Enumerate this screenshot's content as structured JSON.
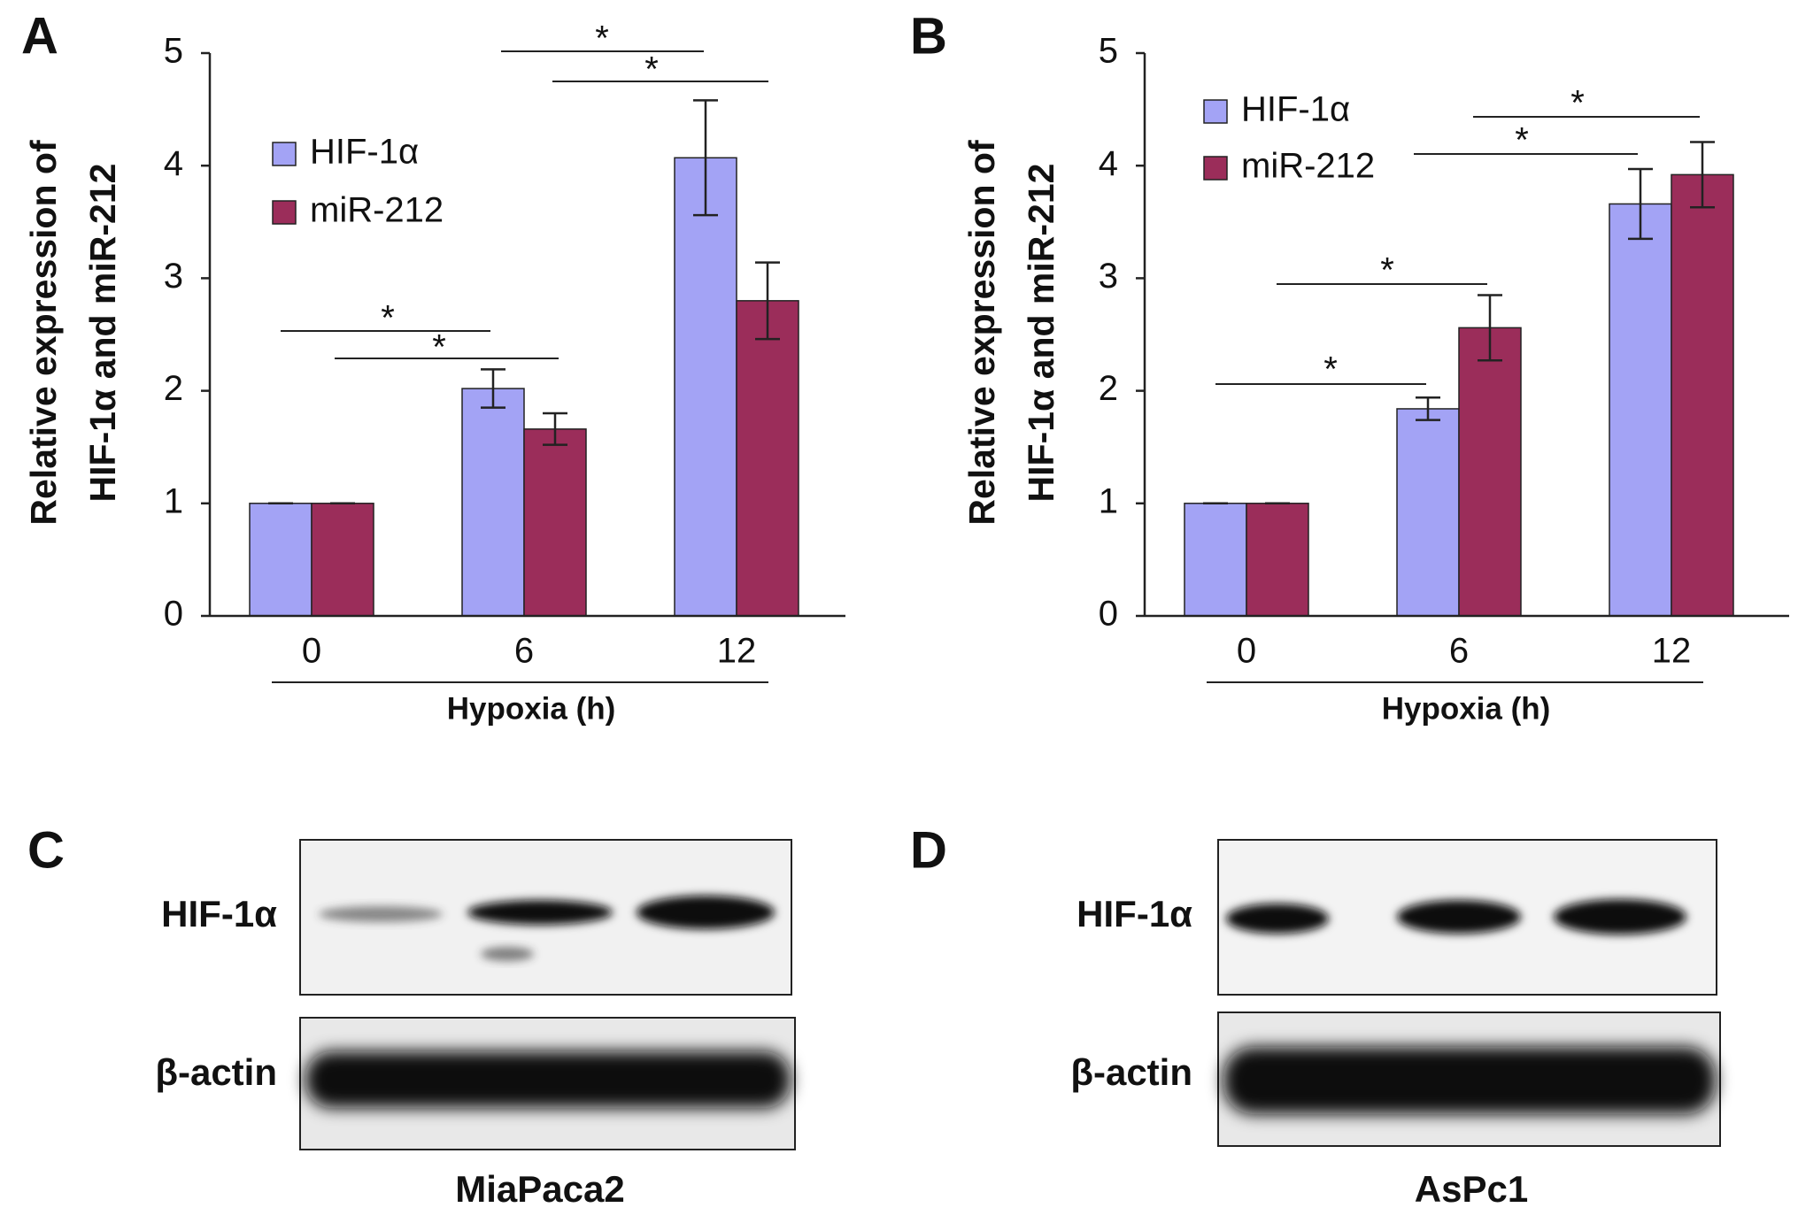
{
  "chart_data": [
    {
      "type": "bar",
      "panel": "A",
      "ylabel": [
        "Relative expression of",
        "HIF-1α and miR-212"
      ],
      "xlabel": "Hypoxia (h)",
      "categories": [
        "0",
        "6",
        "12"
      ],
      "series": [
        {
          "name": "HIF-1α",
          "color": "#a3a3f5",
          "values": [
            1,
            2.02,
            4.07
          ],
          "errors": [
            0,
            0.17,
            0.51
          ]
        },
        {
          "name": "miR-212",
          "color": "#9b2d5a",
          "values": [
            1,
            1.66,
            2.8
          ],
          "errors": [
            0,
            0.14,
            0.34
          ]
        }
      ],
      "ylim": [
        0,
        5
      ],
      "yticks": [
        0,
        1,
        2,
        3,
        4,
        5
      ],
      "annotations": [
        "*",
        "*",
        "*",
        "*"
      ]
    },
    {
      "type": "bar",
      "panel": "B",
      "ylabel": [
        "Relative expression of",
        "HIF-1α and miR-212"
      ],
      "xlabel": "Hypoxia (h)",
      "categories": [
        "0",
        "6",
        "12"
      ],
      "series": [
        {
          "name": "HIF-1α",
          "color": "#a3a3f5",
          "values": [
            1,
            1.84,
            3.66
          ],
          "errors": [
            0,
            0.1,
            0.31
          ]
        },
        {
          "name": "miR-212",
          "color": "#9b2d5a",
          "values": [
            1,
            2.56,
            3.92
          ],
          "errors": [
            0,
            0.29,
            0.29
          ]
        }
      ],
      "ylim": [
        0,
        5
      ],
      "yticks": [
        0,
        1,
        2,
        3,
        4,
        5
      ],
      "annotations": [
        "*",
        "*",
        "*",
        "*"
      ]
    }
  ],
  "blots": [
    {
      "panel": "C",
      "rows": [
        "HIF-1α",
        "β-actin"
      ],
      "cell_line": "MiaPaca2"
    },
    {
      "panel": "D",
      "rows": [
        "HIF-1α",
        "β-actin"
      ],
      "cell_line": "AsPc1"
    }
  ]
}
